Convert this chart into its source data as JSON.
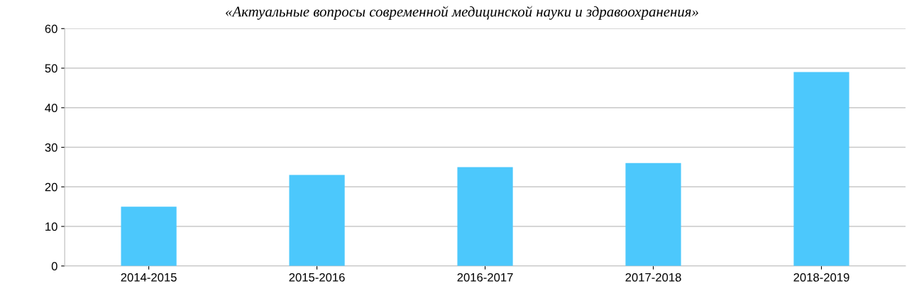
{
  "chart_data": {
    "type": "bar",
    "title": "«Актуальные вопросы современной медицинской науки и здравоохранения»",
    "categories": [
      "2014-2015",
      "2015-2016",
      "2016-2017",
      "2017-2018",
      "2018-2019"
    ],
    "values": [
      15,
      23,
      25,
      26,
      49
    ],
    "color": "#4cc8fc",
    "ylim": [
      0,
      60
    ],
    "yticks": [
      0,
      10,
      20,
      30,
      40,
      50,
      60
    ],
    "grid": "y",
    "legend": false
  }
}
